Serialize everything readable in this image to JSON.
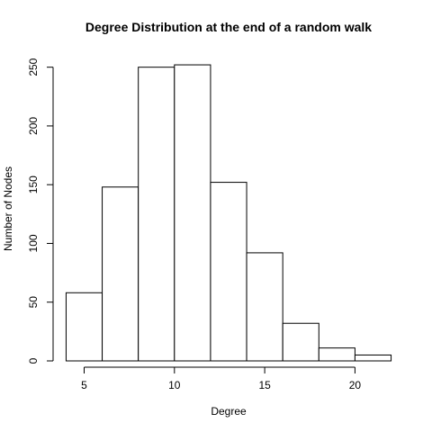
{
  "chart_data": {
    "type": "histogram",
    "title": "Degree Distribution at the end of a random walk",
    "xlabel": "Degree",
    "ylabel": "Number of Nodes",
    "bins": [
      {
        "x0": 4,
        "x1": 6,
        "count": 58
      },
      {
        "x0": 6,
        "x1": 8,
        "count": 148
      },
      {
        "x0": 8,
        "x1": 10,
        "count": 250
      },
      {
        "x0": 10,
        "x1": 12,
        "count": 252
      },
      {
        "x0": 12,
        "x1": 14,
        "count": 152
      },
      {
        "x0": 14,
        "x1": 16,
        "count": 92
      },
      {
        "x0": 16,
        "x1": 18,
        "count": 32
      },
      {
        "x0": 18,
        "x1": 20,
        "count": 11
      },
      {
        "x0": 20,
        "x1": 22,
        "count": 5
      }
    ],
    "xlim": [
      3.28,
      22.72
    ],
    "ylim": [
      0,
      262
    ],
    "xticks": [
      5,
      10,
      15,
      20
    ],
    "yticks": [
      0,
      50,
      100,
      150,
      200,
      250
    ],
    "grid": false,
    "bar_fill": "#ffffff",
    "bar_stroke": "#000000"
  }
}
